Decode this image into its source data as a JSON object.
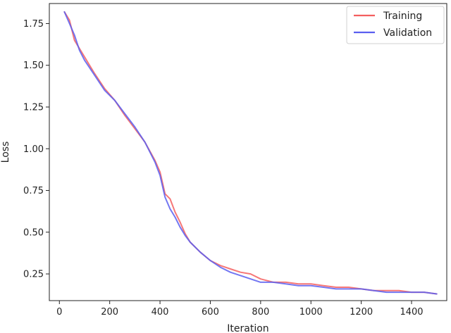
{
  "chart_data": {
    "type": "line",
    "title": "",
    "xlabel": "Iteration",
    "ylabel": "Loss",
    "xlim": [
      -40,
      1540
    ],
    "ylim": [
      0.09,
      1.87
    ],
    "xticks": [
      0,
      200,
      400,
      600,
      800,
      1000,
      1200,
      1400
    ],
    "xtick_labels": [
      "0",
      "200",
      "400",
      "600",
      "800",
      "1000",
      "1200",
      "1400"
    ],
    "yticks": [
      0.25,
      0.5,
      0.75,
      1.0,
      1.25,
      1.5,
      1.75
    ],
    "ytick_labels": [
      "0.25",
      "0.50",
      "0.75",
      "1.00",
      "1.25",
      "1.50",
      "1.75"
    ],
    "grid": false,
    "legend_position": "top-right",
    "x": [
      20,
      40,
      60,
      80,
      100,
      140,
      180,
      220,
      260,
      300,
      340,
      380,
      400,
      420,
      440,
      460,
      480,
      500,
      520,
      560,
      600,
      640,
      680,
      720,
      760,
      800,
      850,
      900,
      950,
      1000,
      1050,
      1100,
      1150,
      1200,
      1250,
      1300,
      1350,
      1400,
      1450,
      1500
    ],
    "series": [
      {
        "name": "Training",
        "color": "#f45f5f",
        "values": [
          1.82,
          1.77,
          1.65,
          1.6,
          1.55,
          1.45,
          1.36,
          1.29,
          1.2,
          1.12,
          1.04,
          0.93,
          0.86,
          0.73,
          0.7,
          0.62,
          0.56,
          0.49,
          0.44,
          0.38,
          0.33,
          0.3,
          0.28,
          0.26,
          0.25,
          0.22,
          0.2,
          0.2,
          0.19,
          0.19,
          0.18,
          0.17,
          0.17,
          0.16,
          0.15,
          0.15,
          0.15,
          0.14,
          0.14,
          0.13
        ]
      },
      {
        "name": "Validation",
        "color": "#5a5ff0",
        "values": [
          1.82,
          1.75,
          1.68,
          1.59,
          1.53,
          1.44,
          1.35,
          1.29,
          1.21,
          1.13,
          1.04,
          0.92,
          0.84,
          0.71,
          0.64,
          0.59,
          0.53,
          0.48,
          0.44,
          0.38,
          0.33,
          0.29,
          0.26,
          0.24,
          0.22,
          0.2,
          0.2,
          0.19,
          0.18,
          0.18,
          0.17,
          0.16,
          0.16,
          0.16,
          0.15,
          0.14,
          0.14,
          0.14,
          0.14,
          0.13
        ]
      }
    ]
  }
}
